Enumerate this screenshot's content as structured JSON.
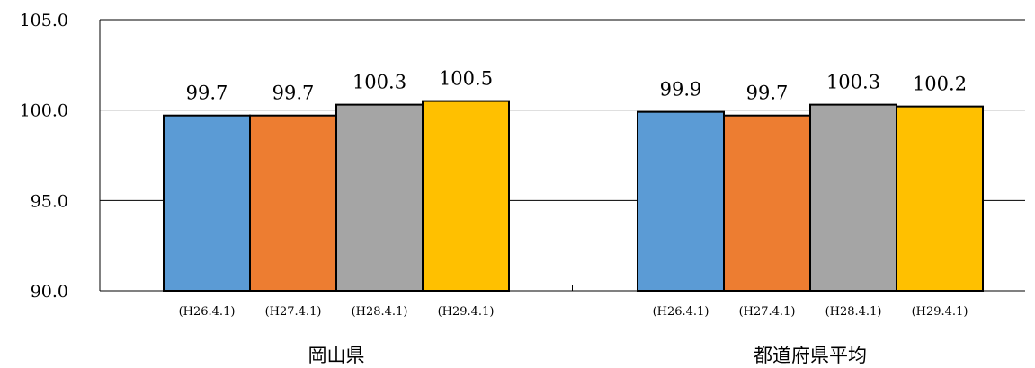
{
  "chart_data": {
    "type": "bar",
    "title": "",
    "xlabel": "",
    "ylabel": "",
    "ylim": [
      90.0,
      105.0
    ],
    "yticks": [
      "90.0",
      "95.0",
      "100.0",
      "105.0"
    ],
    "grid": true,
    "legend": "none",
    "categories": [
      "岡山県",
      "都道府県平均"
    ],
    "series": [
      {
        "name": "(H26.4.1)",
        "color": "#5b9bd5",
        "values": [
          99.7,
          99.9
        ],
        "labels": [
          "99.7",
          "99.9"
        ]
      },
      {
        "name": "(H27.4.1)",
        "color": "#ed7d31",
        "values": [
          99.7,
          99.7
        ],
        "labels": [
          "99.7",
          "99.7"
        ]
      },
      {
        "name": "(H28.4.1)",
        "color": "#a5a5a5",
        "values": [
          100.3,
          100.3
        ],
        "labels": [
          "100.3",
          "100.3"
        ]
      },
      {
        "name": "(H29.4.1)",
        "color": "#ffc000",
        "values": [
          100.5,
          100.2
        ],
        "labels": [
          "100.5",
          "100.2"
        ]
      }
    ]
  }
}
